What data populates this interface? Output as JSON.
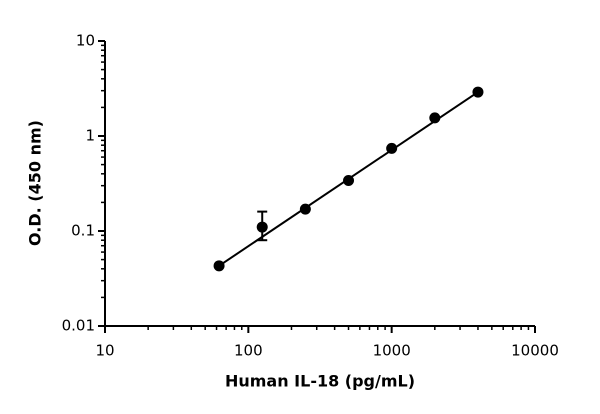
{
  "chart_data": {
    "type": "scatter",
    "x_label": "Human IL-18 (pg/mL)",
    "y_label": "O.D. (450 nm)",
    "x": [
      62.5,
      125,
      250,
      500,
      1000,
      2000,
      4000
    ],
    "values": [
      0.043,
      0.11,
      0.17,
      0.34,
      0.74,
      1.55,
      2.9
    ],
    "error_bars": [
      {
        "index": 1,
        "low": 0.08,
        "high": 0.16
      }
    ],
    "fit": {
      "x": [
        62.5,
        4000
      ],
      "y": [
        0.043,
        2.9
      ]
    },
    "color": "#000000",
    "log_x": true,
    "log_y": true,
    "xlim": [
      10,
      10000
    ],
    "xticks": [
      10,
      100,
      1000,
      10000
    ],
    "xminorticks": [
      20,
      30,
      40,
      50,
      60,
      70,
      80,
      90,
      200,
      300,
      400,
      500,
      600,
      700,
      800,
      900,
      2000,
      3000,
      4000,
      5000,
      6000,
      7000,
      8000,
      9000
    ],
    "ylim": [
      0.01,
      10
    ],
    "yticks": [
      0.01,
      0.1,
      1,
      10
    ],
    "yminorticks": [
      0.02,
      0.03,
      0.04,
      0.05,
      0.06,
      0.07,
      0.08,
      0.09,
      0.2,
      0.3,
      0.4,
      0.5,
      0.6,
      0.7,
      0.8,
      0.9,
      2,
      3,
      4,
      5,
      6,
      7,
      8,
      9
    ]
  }
}
